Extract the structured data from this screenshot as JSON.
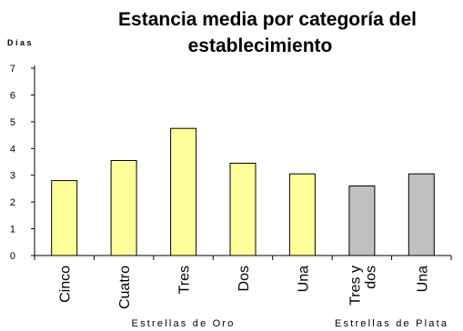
{
  "chart_data": {
    "type": "bar",
    "title_lines": [
      "Estancia media por categoría del",
      "establecimiento"
    ],
    "ylabel": "Días",
    "ylim": [
      0,
      7
    ],
    "yticks": [
      0,
      1,
      2,
      3,
      4,
      5,
      6,
      7
    ],
    "grid": false,
    "legend": "none",
    "categories": [
      {
        "label_lines": [
          "Cinco"
        ],
        "value": 2.8,
        "group": "Estrellas de Oro"
      },
      {
        "label_lines": [
          "Cuatro"
        ],
        "value": 3.55,
        "group": "Estrellas de Oro"
      },
      {
        "label_lines": [
          "Tres"
        ],
        "value": 4.75,
        "group": "Estrellas de Oro"
      },
      {
        "label_lines": [
          "Dos"
        ],
        "value": 3.45,
        "group": "Estrellas de Oro"
      },
      {
        "label_lines": [
          "Una"
        ],
        "value": 3.05,
        "group": "Estrellas de Oro"
      },
      {
        "label_lines": [
          "Tres y",
          "dos"
        ],
        "value": 2.6,
        "group": "Estrellas de Plata"
      },
      {
        "label_lines": [
          "Una"
        ],
        "value": 3.05,
        "group": "Estrellas de Plata"
      }
    ],
    "groups": [
      {
        "name": "Estrellas de Oro",
        "color": "#ffff99"
      },
      {
        "name": "Estrellas de Plata",
        "color": "#c0c0c0"
      }
    ]
  }
}
